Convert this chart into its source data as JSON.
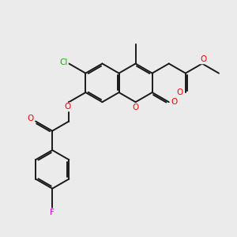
{
  "background_color": "#ebebeb",
  "bond_color": "#1a1a1a",
  "bond_width": 1.4,
  "atom_colors": {
    "O": "#ff0000",
    "Cl": "#00bb00",
    "F": "#dd00dd",
    "C": "#1a1a1a"
  },
  "figsize": [
    3.0,
    3.0
  ],
  "dpi": 100
}
